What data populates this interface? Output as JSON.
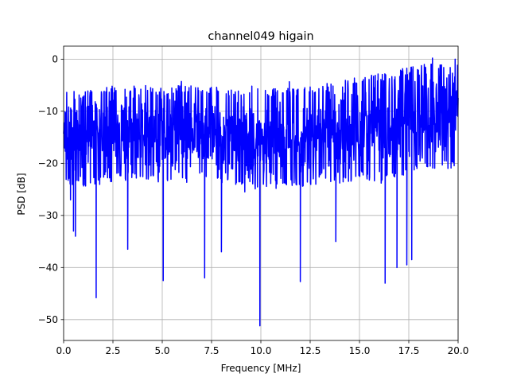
{
  "chart_data": {
    "type": "line",
    "title": "channel049 higain",
    "xlabel": "Frequency [MHz]",
    "ylabel": "PSD [dB]",
    "xlim": [
      0,
      20
    ],
    "ylim": [
      -54,
      2.5
    ],
    "grid": true,
    "x_ticks": [
      0,
      2.5,
      5,
      7.5,
      10,
      12.5,
      15,
      17.5,
      20
    ],
    "x_tick_labels": [
      "0.0",
      "2.5",
      "5.0",
      "7.5",
      "10.0",
      "12.5",
      "15.0",
      "17.5",
      "20.0"
    ],
    "y_ticks": [
      0,
      -10,
      -20,
      -30,
      -40,
      -50
    ],
    "y_tick_labels": [
      "0",
      "−10",
      "−20",
      "−30",
      "−40",
      "−50"
    ],
    "series": [
      {
        "color": "#0000ff",
        "envelope_x": [
          0,
          1,
          2,
          3,
          4,
          5,
          6,
          7,
          8,
          9,
          10,
          11,
          12,
          13,
          14,
          15,
          16,
          17,
          18,
          19,
          20
        ],
        "envelope_upper": [
          -6,
          -6,
          -5.5,
          -5,
          -5,
          -5.5,
          -5,
          -5,
          -5.5,
          -6,
          -6,
          -5.5,
          -5,
          -5,
          -4,
          -3.5,
          -3,
          -2,
          -1,
          -0.5,
          0
        ],
        "envelope_lower": [
          -24,
          -25,
          -24,
          -23,
          -23,
          -24,
          -24,
          -23,
          -24,
          -25,
          -25,
          -24,
          -25,
          -24,
          -24,
          -23,
          -24,
          -23,
          -21,
          -21,
          -21
        ],
        "dips": [
          {
            "x": 0.35,
            "y": -27
          },
          {
            "x": 0.5,
            "y": -33
          },
          {
            "x": 0.6,
            "y": -34
          },
          {
            "x": 1.65,
            "y": -45.8
          },
          {
            "x": 3.25,
            "y": -36.5
          },
          {
            "x": 5.05,
            "y": -42.5
          },
          {
            "x": 7.15,
            "y": -42
          },
          {
            "x": 8.0,
            "y": -37
          },
          {
            "x": 9.95,
            "y": -51.2
          },
          {
            "x": 12.0,
            "y": -42.7
          },
          {
            "x": 13.8,
            "y": -35
          },
          {
            "x": 16.3,
            "y": -43
          },
          {
            "x": 16.9,
            "y": -40
          },
          {
            "x": 17.4,
            "y": -39.5
          },
          {
            "x": 17.65,
            "y": -38.5
          }
        ],
        "peaks": [
          {
            "x": 18.7,
            "y": 0.2
          },
          {
            "x": 19.85,
            "y": 0
          }
        ]
      }
    ]
  }
}
